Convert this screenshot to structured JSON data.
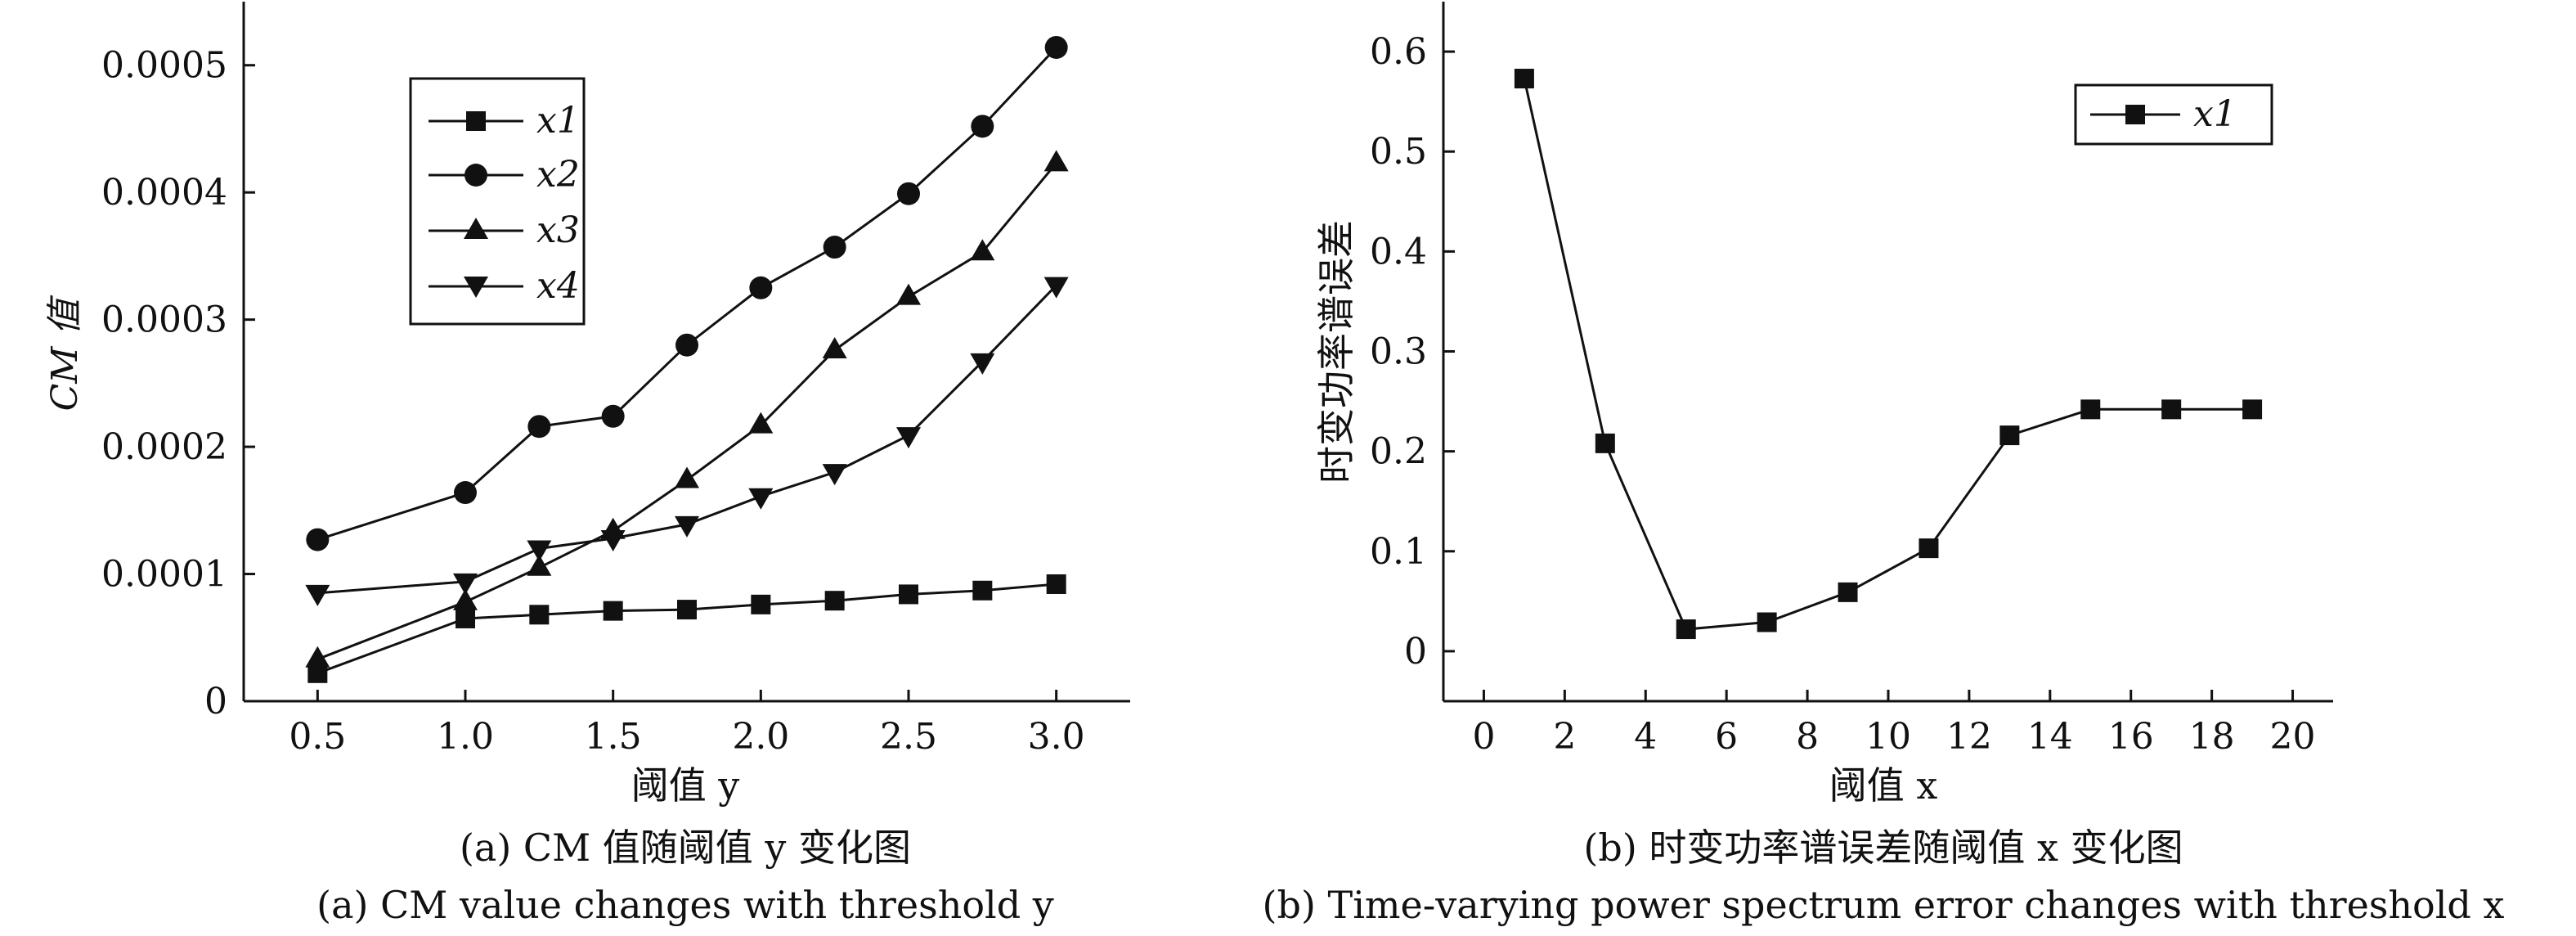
{
  "chart_data": [
    {
      "type": "line",
      "ylabel": "CM 值",
      "xlabel": "阈值 y",
      "caption_cn": "(a) CM 值随阈值 y 变化图",
      "caption_en": "(a) CM value changes with threshold y",
      "x": [
        0.5,
        1.0,
        1.25,
        1.5,
        1.75,
        2.0,
        2.25,
        2.5,
        2.75,
        3.0
      ],
      "xticks": [
        "0.5",
        "1.0",
        "1.5",
        "2.0",
        "2.5",
        "3.0"
      ],
      "yticks": [
        "0",
        "0.0001",
        "0.0002",
        "0.0003",
        "0.0004",
        "0.0005"
      ],
      "xlim": [
        0.25,
        3.25
      ],
      "ylim": [
        0,
        0.00055
      ],
      "grid": false,
      "legend": "top-left",
      "series": [
        {
          "name": "x1",
          "marker": "square",
          "values": [
            2.2e-05,
            6.5e-05,
            6.8e-05,
            7.1e-05,
            7.2e-05,
            7.6e-05,
            7.9e-05,
            8.4e-05,
            8.7e-05,
            9.2e-05
          ]
        },
        {
          "name": "x2",
          "marker": "circle",
          "values": [
            0.000127,
            0.000164,
            0.000216,
            0.000224,
            0.00028,
            0.000325,
            0.000357,
            0.000399,
            0.000452,
            0.000514
          ]
        },
        {
          "name": "x3",
          "marker": "triangle-up",
          "values": [
            3.3e-05,
            7.8e-05,
            0.000105,
            0.000134,
            0.000174,
            0.000217,
            0.000276,
            0.000318,
            0.000353,
            0.000423
          ]
        },
        {
          "name": "x4",
          "marker": "triangle-down",
          "values": [
            8.5e-05,
            9.4e-05,
            0.00012,
            0.000128,
            0.000139,
            0.000161,
            0.00018,
            0.000209,
            0.000267,
            0.000327
          ]
        }
      ]
    },
    {
      "type": "line",
      "ylabel": "时变功率谱误差",
      "xlabel": "阈值 x",
      "caption_cn": "(b) 时变功率谱误差随阈值 x 变化图",
      "caption_en": "(b) Time-varying power spectrum error changes with threshold x",
      "x": [
        1,
        3,
        5,
        7,
        9,
        11,
        13,
        15,
        17,
        19
      ],
      "xticks": [
        "0",
        "2",
        "4",
        "6",
        "8",
        "10",
        "12",
        "14",
        "16",
        "18",
        "20"
      ],
      "yticks": [
        "0",
        "0.1",
        "0.2",
        "0.3",
        "0.4",
        "0.5",
        "0.6"
      ],
      "xlim": [
        -1,
        21
      ],
      "ylim": [
        -0.05,
        0.65
      ],
      "grid": false,
      "legend": "top-right",
      "series": [
        {
          "name": "x1",
          "marker": "square",
          "values": [
            0.573,
            0.208,
            0.022,
            0.029,
            0.059,
            0.103,
            0.216,
            0.242,
            0.242,
            0.242
          ]
        }
      ]
    }
  ]
}
